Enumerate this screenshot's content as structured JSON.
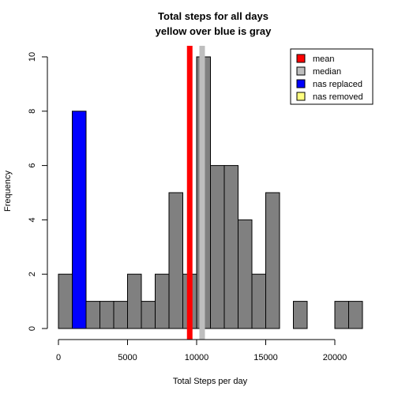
{
  "chart_data": {
    "type": "bar",
    "title": "Total steps for all days",
    "subtitle": "yellow over blue is gray",
    "xlabel": "Total Steps per day",
    "ylabel": "Frequency",
    "xlim": [
      0,
      22000
    ],
    "ylim": [
      0,
      10
    ],
    "x_ticks": [
      0,
      5000,
      10000,
      15000,
      20000
    ],
    "y_ticks": [
      0,
      2,
      4,
      6,
      8,
      10
    ],
    "bin_width": 1000,
    "series": [
      {
        "name": "nas replaced",
        "color": "#0000ff",
        "bin_starts": [
          1000
        ],
        "values": [
          8
        ]
      },
      {
        "name": "overlap",
        "color": "#808080",
        "bin_starts": [
          0,
          1000,
          2000,
          3000,
          4000,
          5000,
          6000,
          7000,
          8000,
          9000,
          10000,
          11000,
          12000,
          13000,
          14000,
          15000,
          16000,
          17000,
          18000,
          19000,
          20000,
          21000
        ],
        "values": [
          2,
          0,
          1,
          1,
          1,
          2,
          1,
          2,
          5,
          2,
          10,
          6,
          6,
          4,
          2,
          5,
          0,
          1,
          0,
          0,
          1,
          1
        ]
      }
    ],
    "vlines": [
      {
        "name": "mean",
        "x": 9500,
        "color": "#ff0000"
      },
      {
        "name": "median",
        "x": 10400,
        "color": "#bebebe"
      }
    ],
    "legend": {
      "position": "top-right",
      "entries": [
        {
          "label": "mean",
          "color": "#ff0000"
        },
        {
          "label": "median",
          "color": "#bebebe"
        },
        {
          "label": "nas replaced",
          "color": "#0000ff"
        },
        {
          "label": "nas removed",
          "color": "#ffff80"
        }
      ]
    },
    "grid": false
  }
}
